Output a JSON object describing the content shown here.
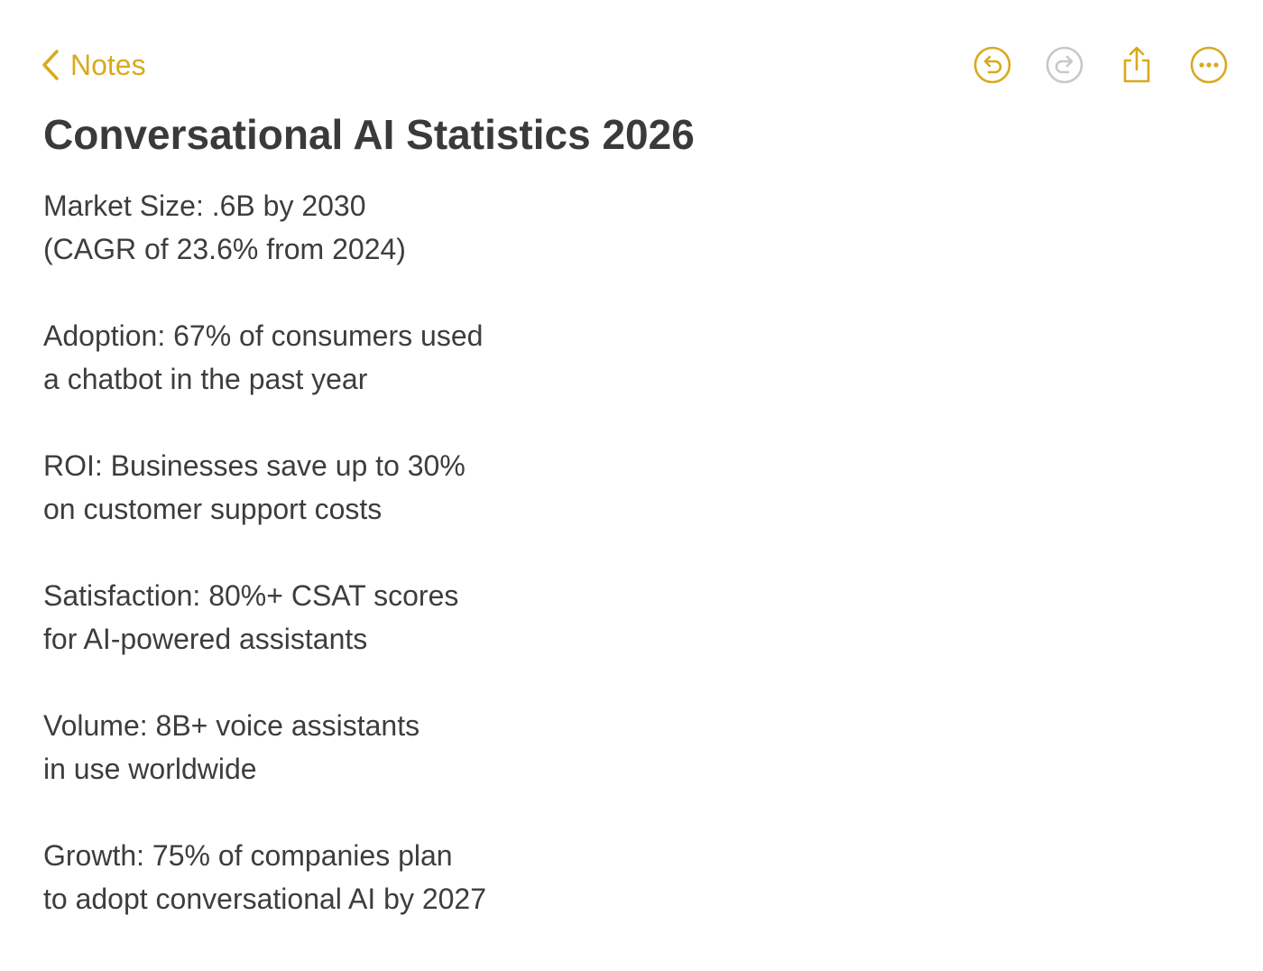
{
  "colors": {
    "accent": "#d9a91f",
    "disabled": "#c8c8c8",
    "text": "#3d3d3d"
  },
  "navigation": {
    "back_label": "Notes",
    "back_icon": "chevron-left-icon"
  },
  "toolbar": {
    "undo_icon": "undo-icon",
    "redo_icon": "redo-icon",
    "share_icon": "share-icon",
    "more_icon": "more-icon"
  },
  "note": {
    "title": "Conversational AI Statistics 2026",
    "stats": [
      {
        "line1": "Market Size: .6B by 2030",
        "line2": "(CAGR of 23.6% from 2024)"
      },
      {
        "line1": "Adoption: 67% of consumers used",
        "line2": "a chatbot in the past year"
      },
      {
        "line1": "ROI: Businesses save up to 30%",
        "line2": "on customer support costs"
      },
      {
        "line1": "Satisfaction: 80%+ CSAT scores",
        "line2": "for AI-powered assistants"
      },
      {
        "line1": "Volume: 8B+ voice assistants",
        "line2": "in use worldwide"
      },
      {
        "line1": "Growth: 75% of companies plan",
        "line2": "to adopt conversational AI by 2027"
      }
    ]
  }
}
